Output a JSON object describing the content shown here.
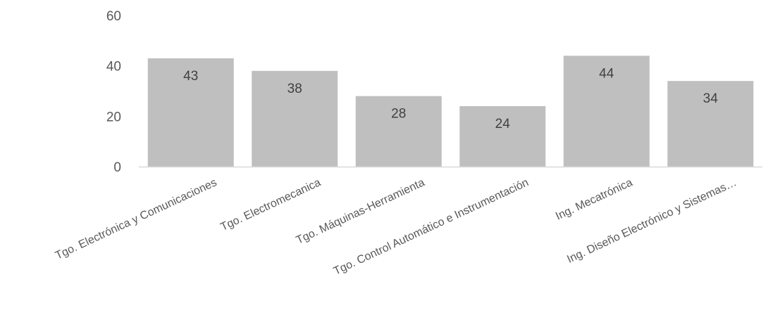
{
  "chart_data": {
    "type": "bar",
    "title": "",
    "xlabel": "",
    "ylabel": "",
    "categories": [
      "Tgo. Electrónica y Comunicaciones",
      "Tgo. Electromecanica",
      "Tgo. Máquinas-Herramienta",
      "Tgo. Control Automático e Instrumentación",
      "Ing. Mecatrónica",
      "Ing. Diseño Electrónico y Sistemas…"
    ],
    "values": [
      43,
      38,
      28,
      24,
      44,
      34
    ],
    "ylim": [
      0,
      60
    ],
    "yticks": [
      0,
      20,
      40,
      60
    ],
    "grid": false,
    "legend": "none",
    "colors": {
      "bar": "#bfbfbf",
      "axis": "#d9d9d9",
      "tick_text": "#595959",
      "data_label_text": "#404040"
    }
  }
}
